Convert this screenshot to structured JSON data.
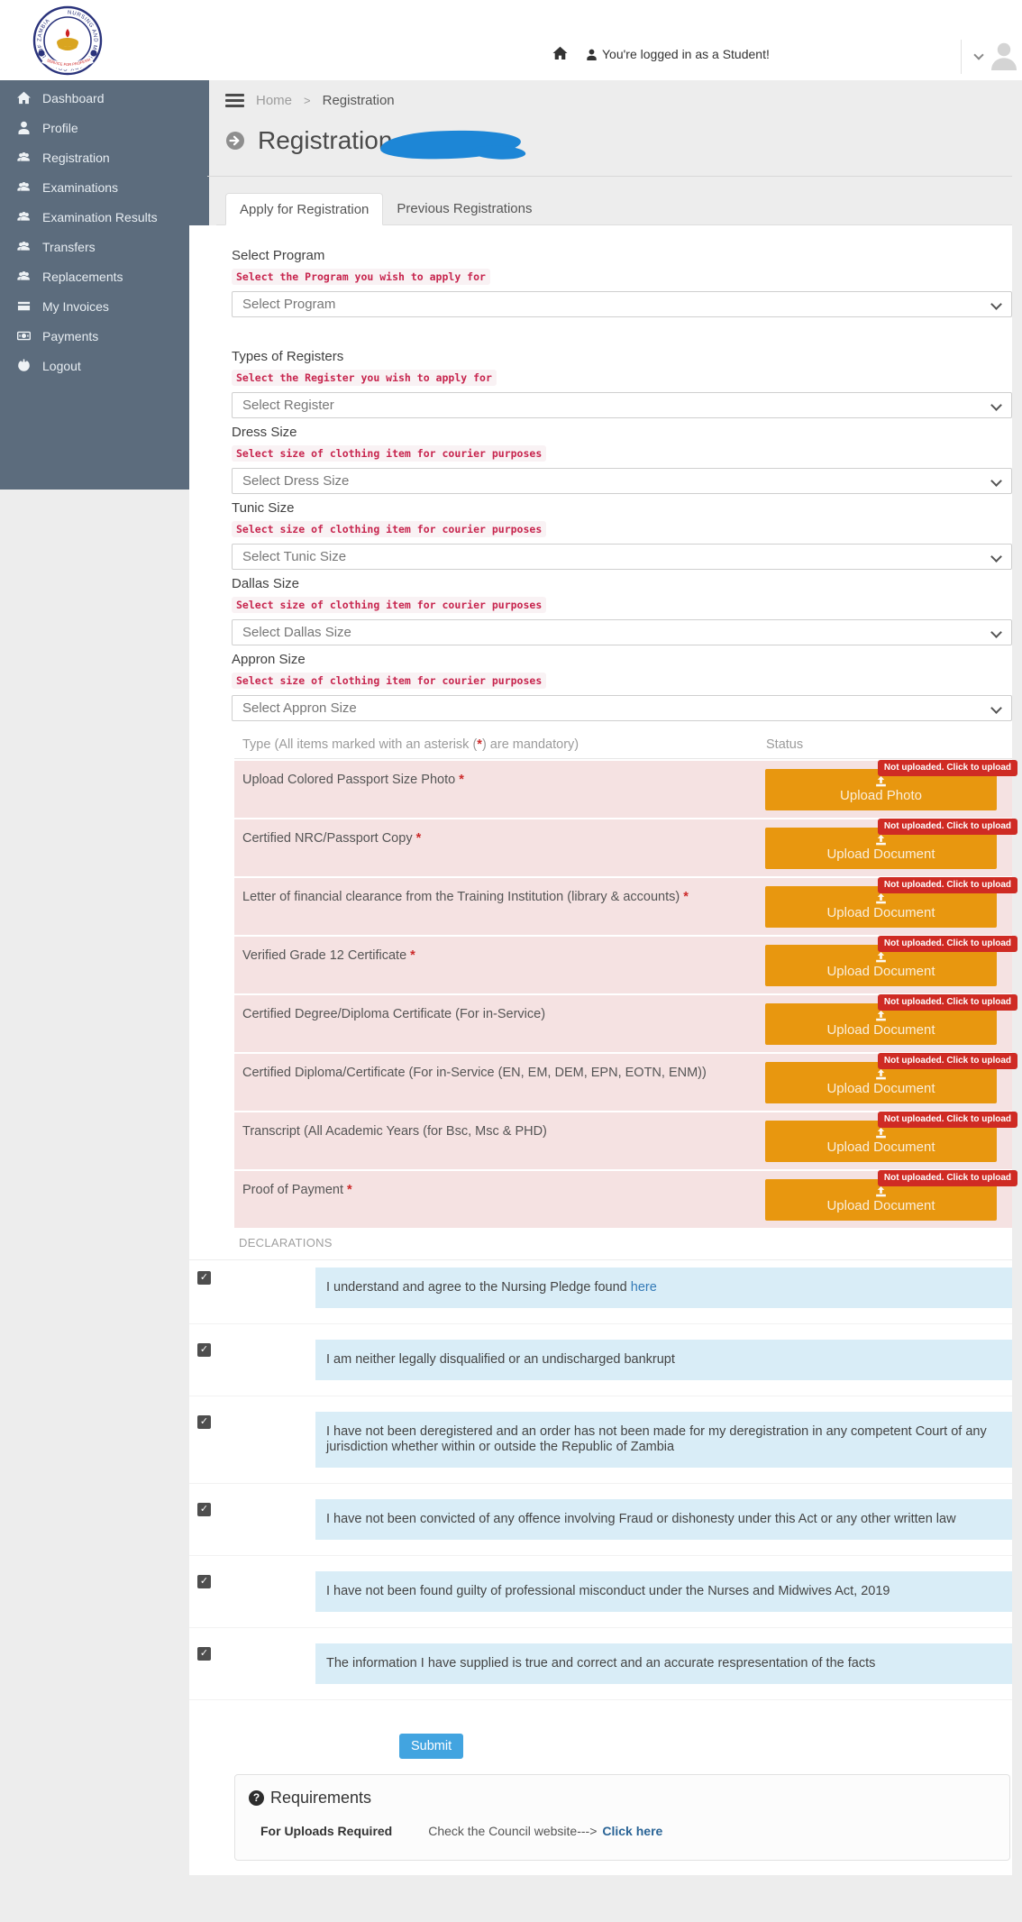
{
  "colors": {
    "sidebar": "#5c6c7d",
    "accent_orange": "#e8970f",
    "badge_red": "#cf2b24",
    "helper_crimson": "#c7254e",
    "info_blue": "#d9edf7",
    "submit_blue": "#42a4e0",
    "link_blue": "#337ab7",
    "row_pink": "#f5e2e2",
    "scribble_blue": "#1d86d6"
  },
  "logo": {
    "ring_text": "NURSING AND MIDWIFERY COUNCIL OF ZAMBIA",
    "banner_text": "SERVICE FOR PROFESSIONAL EXCELLENCE AND GROWTH"
  },
  "header": {
    "login_text": "You're logged in as a Student!"
  },
  "sidebar": {
    "items": [
      {
        "label": "Dashboard",
        "icon": "home-icon"
      },
      {
        "label": "Profile",
        "icon": "user-icon"
      },
      {
        "label": "Registration",
        "icon": "users-icon"
      },
      {
        "label": "Examinations",
        "icon": "users-icon"
      },
      {
        "label": "Examination Results",
        "icon": "users-icon"
      },
      {
        "label": "Transfers",
        "icon": "users-icon"
      },
      {
        "label": "Replacements",
        "icon": "users-icon"
      },
      {
        "label": "My Invoices",
        "icon": "card-icon"
      },
      {
        "label": "Payments",
        "icon": "money-icon"
      },
      {
        "label": "Logout",
        "icon": "power-icon"
      }
    ]
  },
  "breadcrumb": {
    "home": "Home",
    "sep": ">",
    "current": "Registration"
  },
  "page": {
    "title": "Registration"
  },
  "tabs": [
    {
      "label": "Apply for Registration",
      "active": true
    },
    {
      "label": "Previous Registrations",
      "active": false
    }
  ],
  "form": {
    "fields": [
      {
        "label": "Select Program",
        "helper": "Select the Program you wish to apply for",
        "placeholder": "Select Program"
      },
      {
        "label": "Types of Registers",
        "helper": "Select the Register you wish to apply for",
        "placeholder": "Select Register"
      },
      {
        "label": "Dress Size",
        "helper": "Select size of clothing item for courier purposes",
        "placeholder": "Select Dress Size"
      },
      {
        "label": "Tunic Size",
        "helper": "Select size of clothing item for courier purposes",
        "placeholder": "Select Tunic Size"
      },
      {
        "label": "Dallas Size",
        "helper": "Select size of clothing item for courier purposes",
        "placeholder": "Select Dallas Size"
      },
      {
        "label": "Appron Size",
        "helper": "Select size of clothing item for courier purposes",
        "placeholder": "Select Appron Size"
      }
    ]
  },
  "uploads": {
    "type_header_prefix": "Type (All items marked with an asterisk (",
    "type_header_star": "*",
    "type_header_suffix": ") are mandatory)",
    "status_header": "Status",
    "badge": "Not uploaded. Click to upload",
    "rows": [
      {
        "label": "Upload Colored Passport Size Photo",
        "required": true,
        "button": "Upload Photo"
      },
      {
        "label": "Certified NRC/Passport Copy",
        "required": true,
        "button": "Upload Document"
      },
      {
        "label": "Letter of financial clearance from the Training Institution (library & accounts)",
        "required": true,
        "button": "Upload Document"
      },
      {
        "label": "Verified Grade 12 Certificate",
        "required": true,
        "button": "Upload Document"
      },
      {
        "label": "Certified Degree/Diploma Certificate (For in-Service)",
        "required": false,
        "button": "Upload Document"
      },
      {
        "label": "Certified Diploma/Certificate (For in-Service (EN, EM, DEM, EPN, EOTN, ENM))",
        "required": false,
        "button": "Upload Document"
      },
      {
        "label": "Transcript (All Academic Years (for Bsc, Msc & PHD)",
        "required": false,
        "button": "Upload Document"
      },
      {
        "label": "Proof of Payment",
        "required": true,
        "button": "Upload Document"
      }
    ]
  },
  "declarations": {
    "heading": "DECLARATIONS",
    "items": [
      {
        "text": "I understand and agree to the Nursing Pledge found",
        "link": "here"
      },
      {
        "text": "I am neither legally disqualified or an undischarged bankrupt"
      },
      {
        "text": "I have not been deregistered and an order has not been made for my deregistration in any competent Court of any jurisdiction whether within or outside the Republic of Zambia"
      },
      {
        "text": "I have not been convicted of any offence involving Fraud or dishonesty under this Act or any other written law"
      },
      {
        "text": "I have not been found guilty of professional misconduct under the Nurses and Midwives Act, 2019"
      },
      {
        "text": "The information I have supplied is true and correct and an accurate respresentation of the facts"
      }
    ]
  },
  "submit_label": "Submit",
  "requirements": {
    "title": "Requirements",
    "bold_label": "For Uploads Required",
    "text": "Check the Council website--->",
    "link_label": "Click here"
  }
}
